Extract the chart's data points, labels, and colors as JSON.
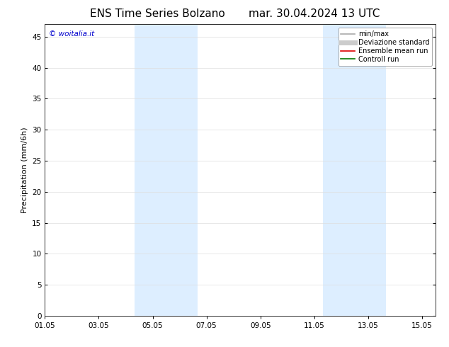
{
  "title_left": "ENS Time Series Bolzano",
  "title_right": "mar. 30.04.2024 13 UTC",
  "ylabel": "Precipitation (mm/6h)",
  "watermark": "© woitalia.it",
  "watermark_color": "#0000cc",
  "xlim_start": 0,
  "xlim_end": 14.5,
  "ylim_min": 0,
  "ylim_max": 47,
  "yticks": [
    0,
    5,
    10,
    15,
    20,
    25,
    30,
    35,
    40,
    45
  ],
  "xtick_labels": [
    "01.05",
    "03.05",
    "05.05",
    "07.05",
    "09.05",
    "11.05",
    "13.05",
    "15.05"
  ],
  "xtick_positions": [
    0,
    2,
    4,
    6,
    8,
    10,
    12,
    14
  ],
  "shade_bands": [
    {
      "xmin": 3.33,
      "xmax": 5.67
    },
    {
      "xmin": 10.33,
      "xmax": 12.67
    }
  ],
  "shade_color": "#ddeeff",
  "shade_alpha": 1.0,
  "legend_entries": [
    {
      "label": "min/max",
      "color": "#aaaaaa",
      "lw": 1.2,
      "linestyle": "-"
    },
    {
      "label": "Deviazione standard",
      "color": "#cccccc",
      "lw": 5,
      "linestyle": "-"
    },
    {
      "label": "Ensemble mean run",
      "color": "#dd0000",
      "lw": 1.2,
      "linestyle": "-"
    },
    {
      "label": "Controll run",
      "color": "#007700",
      "lw": 1.2,
      "linestyle": "-"
    }
  ],
  "bg_color": "#ffffff",
  "grid_color": "#dddddd",
  "title_fontsize": 11,
  "axis_fontsize": 8,
  "tick_fontsize": 7.5,
  "legend_fontsize": 7
}
